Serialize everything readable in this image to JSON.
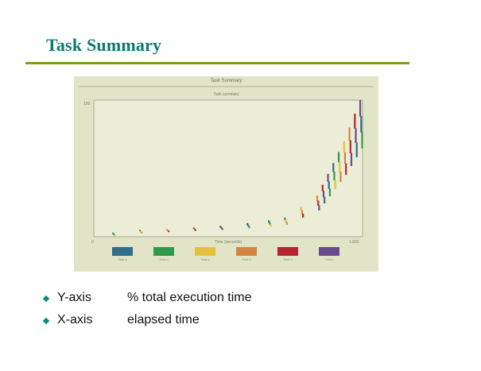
{
  "slide": {
    "title": "Task Summary"
  },
  "screenshot": {
    "window_title": "Task Summary",
    "chart_subtitle": "Task summary",
    "xlabel": "Time (seconds)",
    "y_tick_top": "100",
    "x_tick_left": "0",
    "x_tick_right": "1.000",
    "legend": [
      {
        "label": "Task a",
        "color": "#2f6e8c"
      },
      {
        "label": "Task b",
        "color": "#2f9a4a"
      },
      {
        "label": "Task c",
        "color": "#e2c23c"
      },
      {
        "label": "Task d",
        "color": "#d3843f"
      },
      {
        "label": "Task e",
        "color": "#b3262e"
      },
      {
        "label": "Task f",
        "color": "#6a4a8e"
      }
    ]
  },
  "bullets": [
    {
      "key": "Y-axis",
      "value": "% total execution time"
    },
    {
      "key": "X-axis",
      "value": "elapsed time"
    }
  ],
  "chart_data": {
    "type": "bar",
    "title": "Task summary",
    "xlabel": "Time (seconds)",
    "ylabel": "",
    "ylim": [
      0,
      100
    ],
    "x": [
      0.08,
      0.18,
      0.28,
      0.38,
      0.48,
      0.58,
      0.66,
      0.72,
      0.78,
      0.84,
      0.86,
      0.88,
      0.9,
      0.92,
      0.94,
      0.96,
      0.98,
      1.0
    ],
    "values": [
      3,
      5,
      6,
      7,
      8,
      10,
      12,
      14,
      22,
      30,
      38,
      46,
      54,
      62,
      70,
      80,
      90,
      100
    ]
  }
}
